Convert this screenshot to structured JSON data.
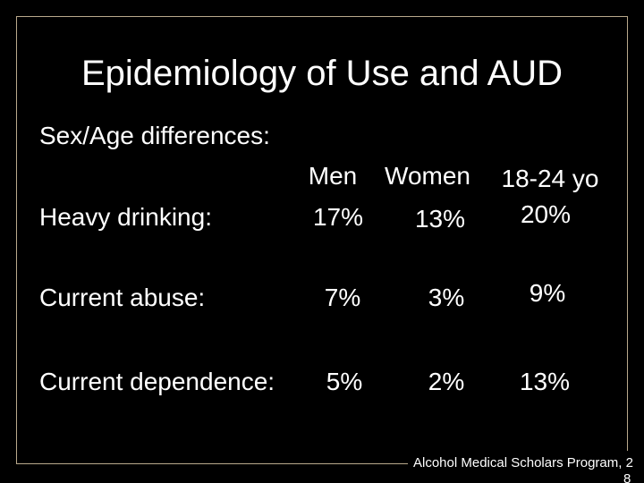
{
  "title": "Epidemiology of Use and AUD",
  "subtitle": "Sex/Age differences:",
  "table": {
    "columns": [
      "Men",
      "Women",
      "18-24 yo"
    ],
    "rows": [
      {
        "label": "Heavy drinking:",
        "cells": [
          "17%",
          "13%",
          "20%"
        ]
      },
      {
        "label": "Current abuse:",
        "cells": [
          "7%",
          "3%",
          "9%"
        ]
      },
      {
        "label": "Current dependence:",
        "cells": [
          "5%",
          "2%",
          "13%"
        ]
      }
    ]
  },
  "footer": [
    "Alcohol Medical Scholars Program, 2",
    "8"
  ]
}
